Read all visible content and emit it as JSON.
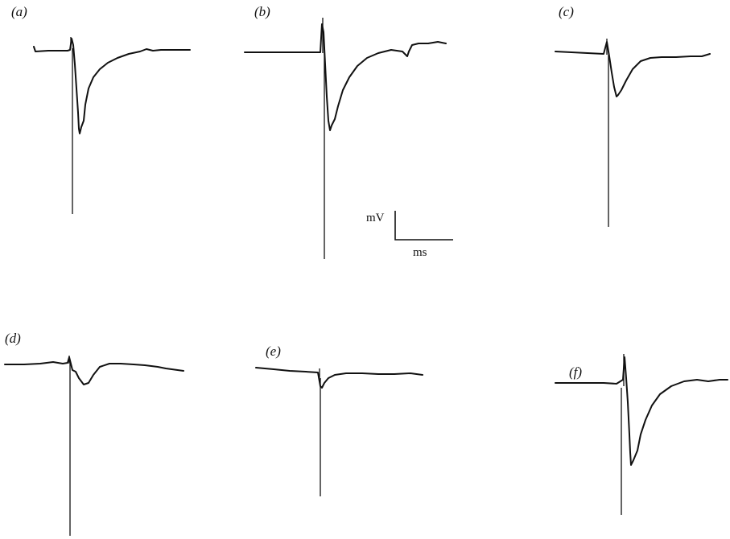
{
  "panels": [
    {
      "id": "a",
      "label": "(a)"
    },
    {
      "id": "b",
      "label": "(b)"
    },
    {
      "id": "c",
      "label": "(c)"
    },
    {
      "id": "d",
      "label": "(d)"
    },
    {
      "id": "e",
      "label": "(e)"
    },
    {
      "id": "f",
      "label": "(f)"
    }
  ],
  "scale_bar": {
    "voltage_unit": "mV",
    "time_unit": "ms"
  }
}
